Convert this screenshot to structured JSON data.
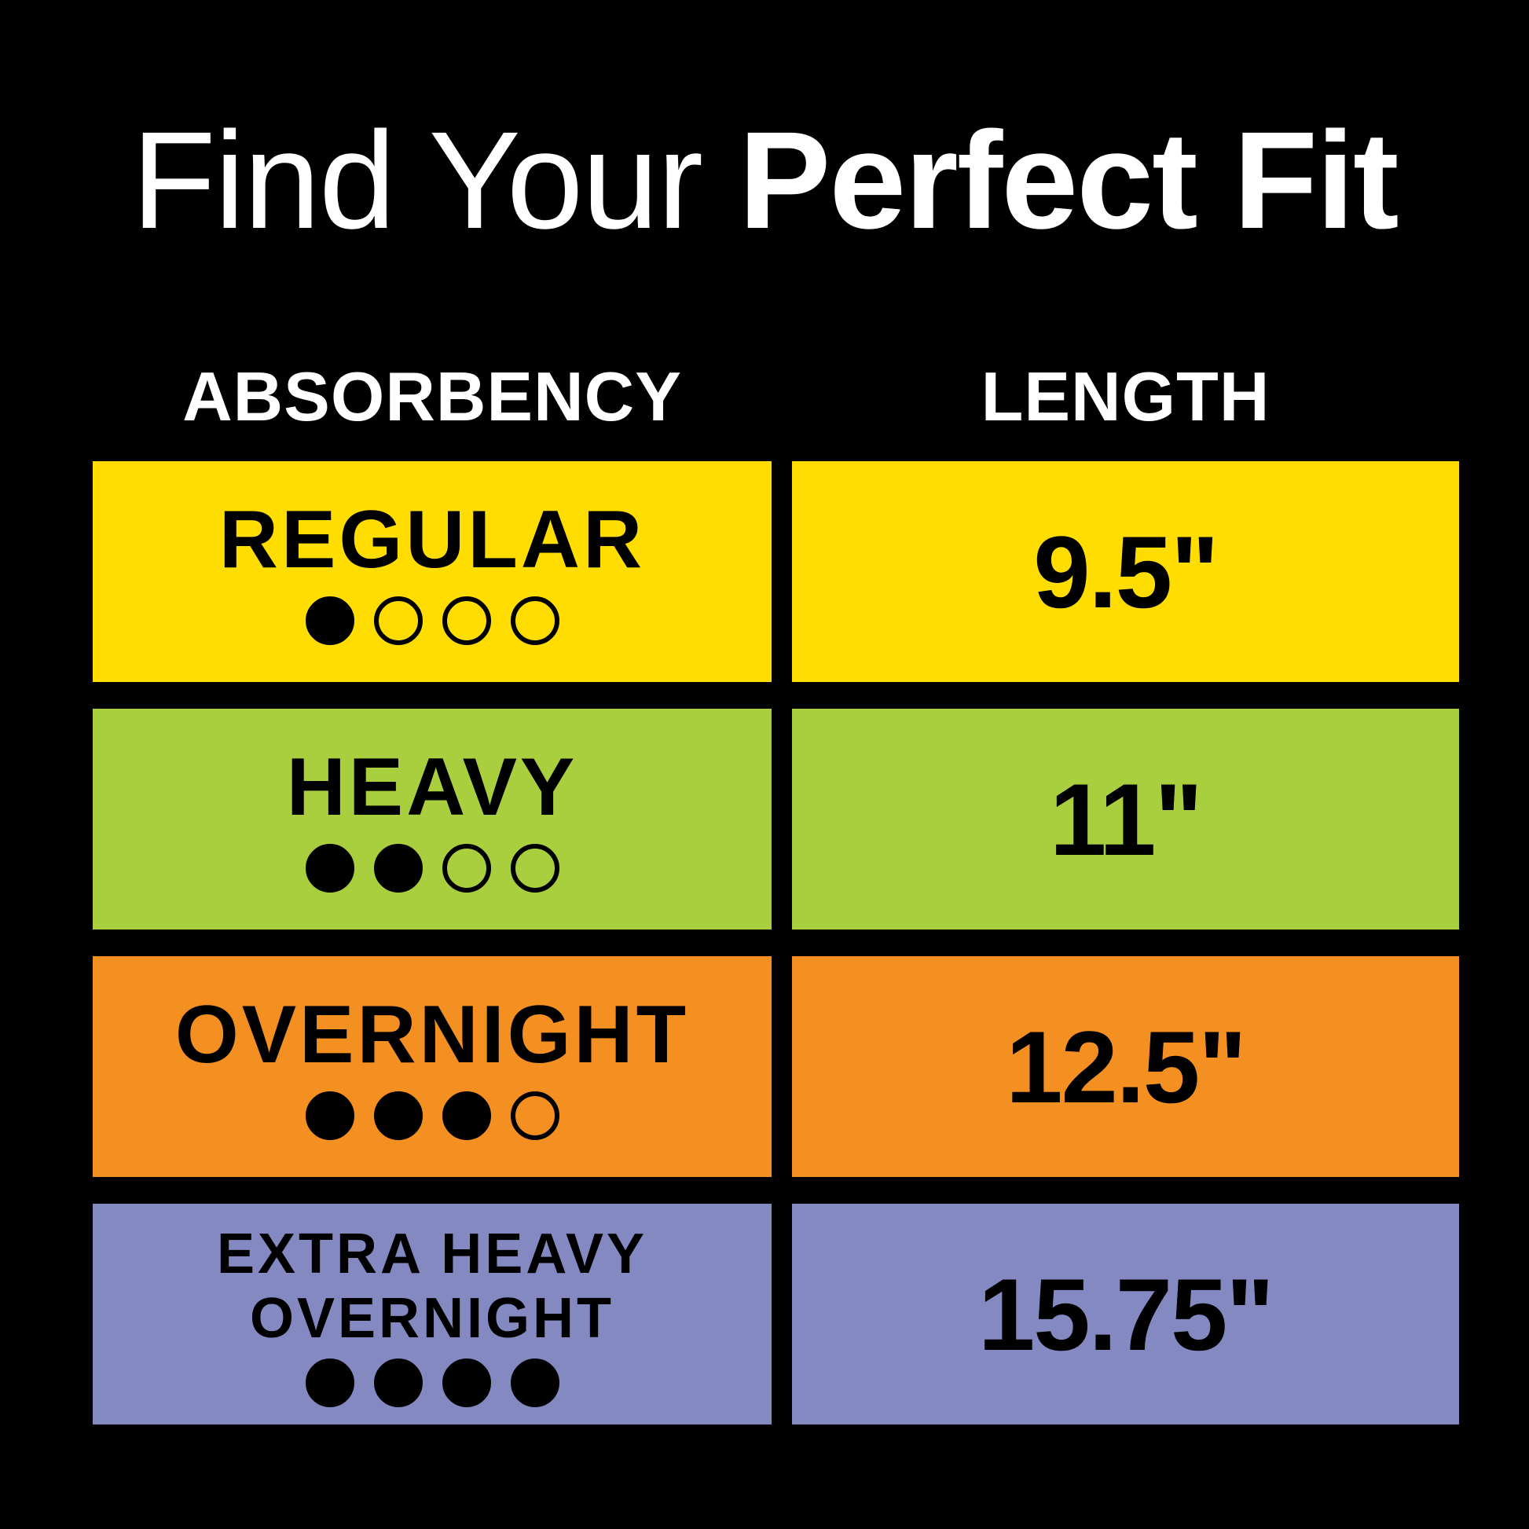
{
  "title": {
    "light": "Find Your",
    "bold": "Perfect Fit"
  },
  "headers": {
    "absorbency": "ABSORBENCY",
    "length": "LENGTH"
  },
  "rows": [
    {
      "label": [
        "REGULAR"
      ],
      "level": 1,
      "max": 4,
      "length": "9.5\"",
      "color": "#FFDD00"
    },
    {
      "label": [
        "HEAVY"
      ],
      "level": 2,
      "max": 4,
      "length": "11\"",
      "color": "#A9CF3F"
    },
    {
      "label": [
        "OVERNIGHT"
      ],
      "level": 3,
      "max": 4,
      "length": "12.5\"",
      "color": "#F48F22"
    },
    {
      "label": [
        "EXTRA HEAVY",
        "OVERNIGHT"
      ],
      "level": 4,
      "max": 4,
      "length": "15.75\"",
      "color": "#8489C1"
    }
  ]
}
